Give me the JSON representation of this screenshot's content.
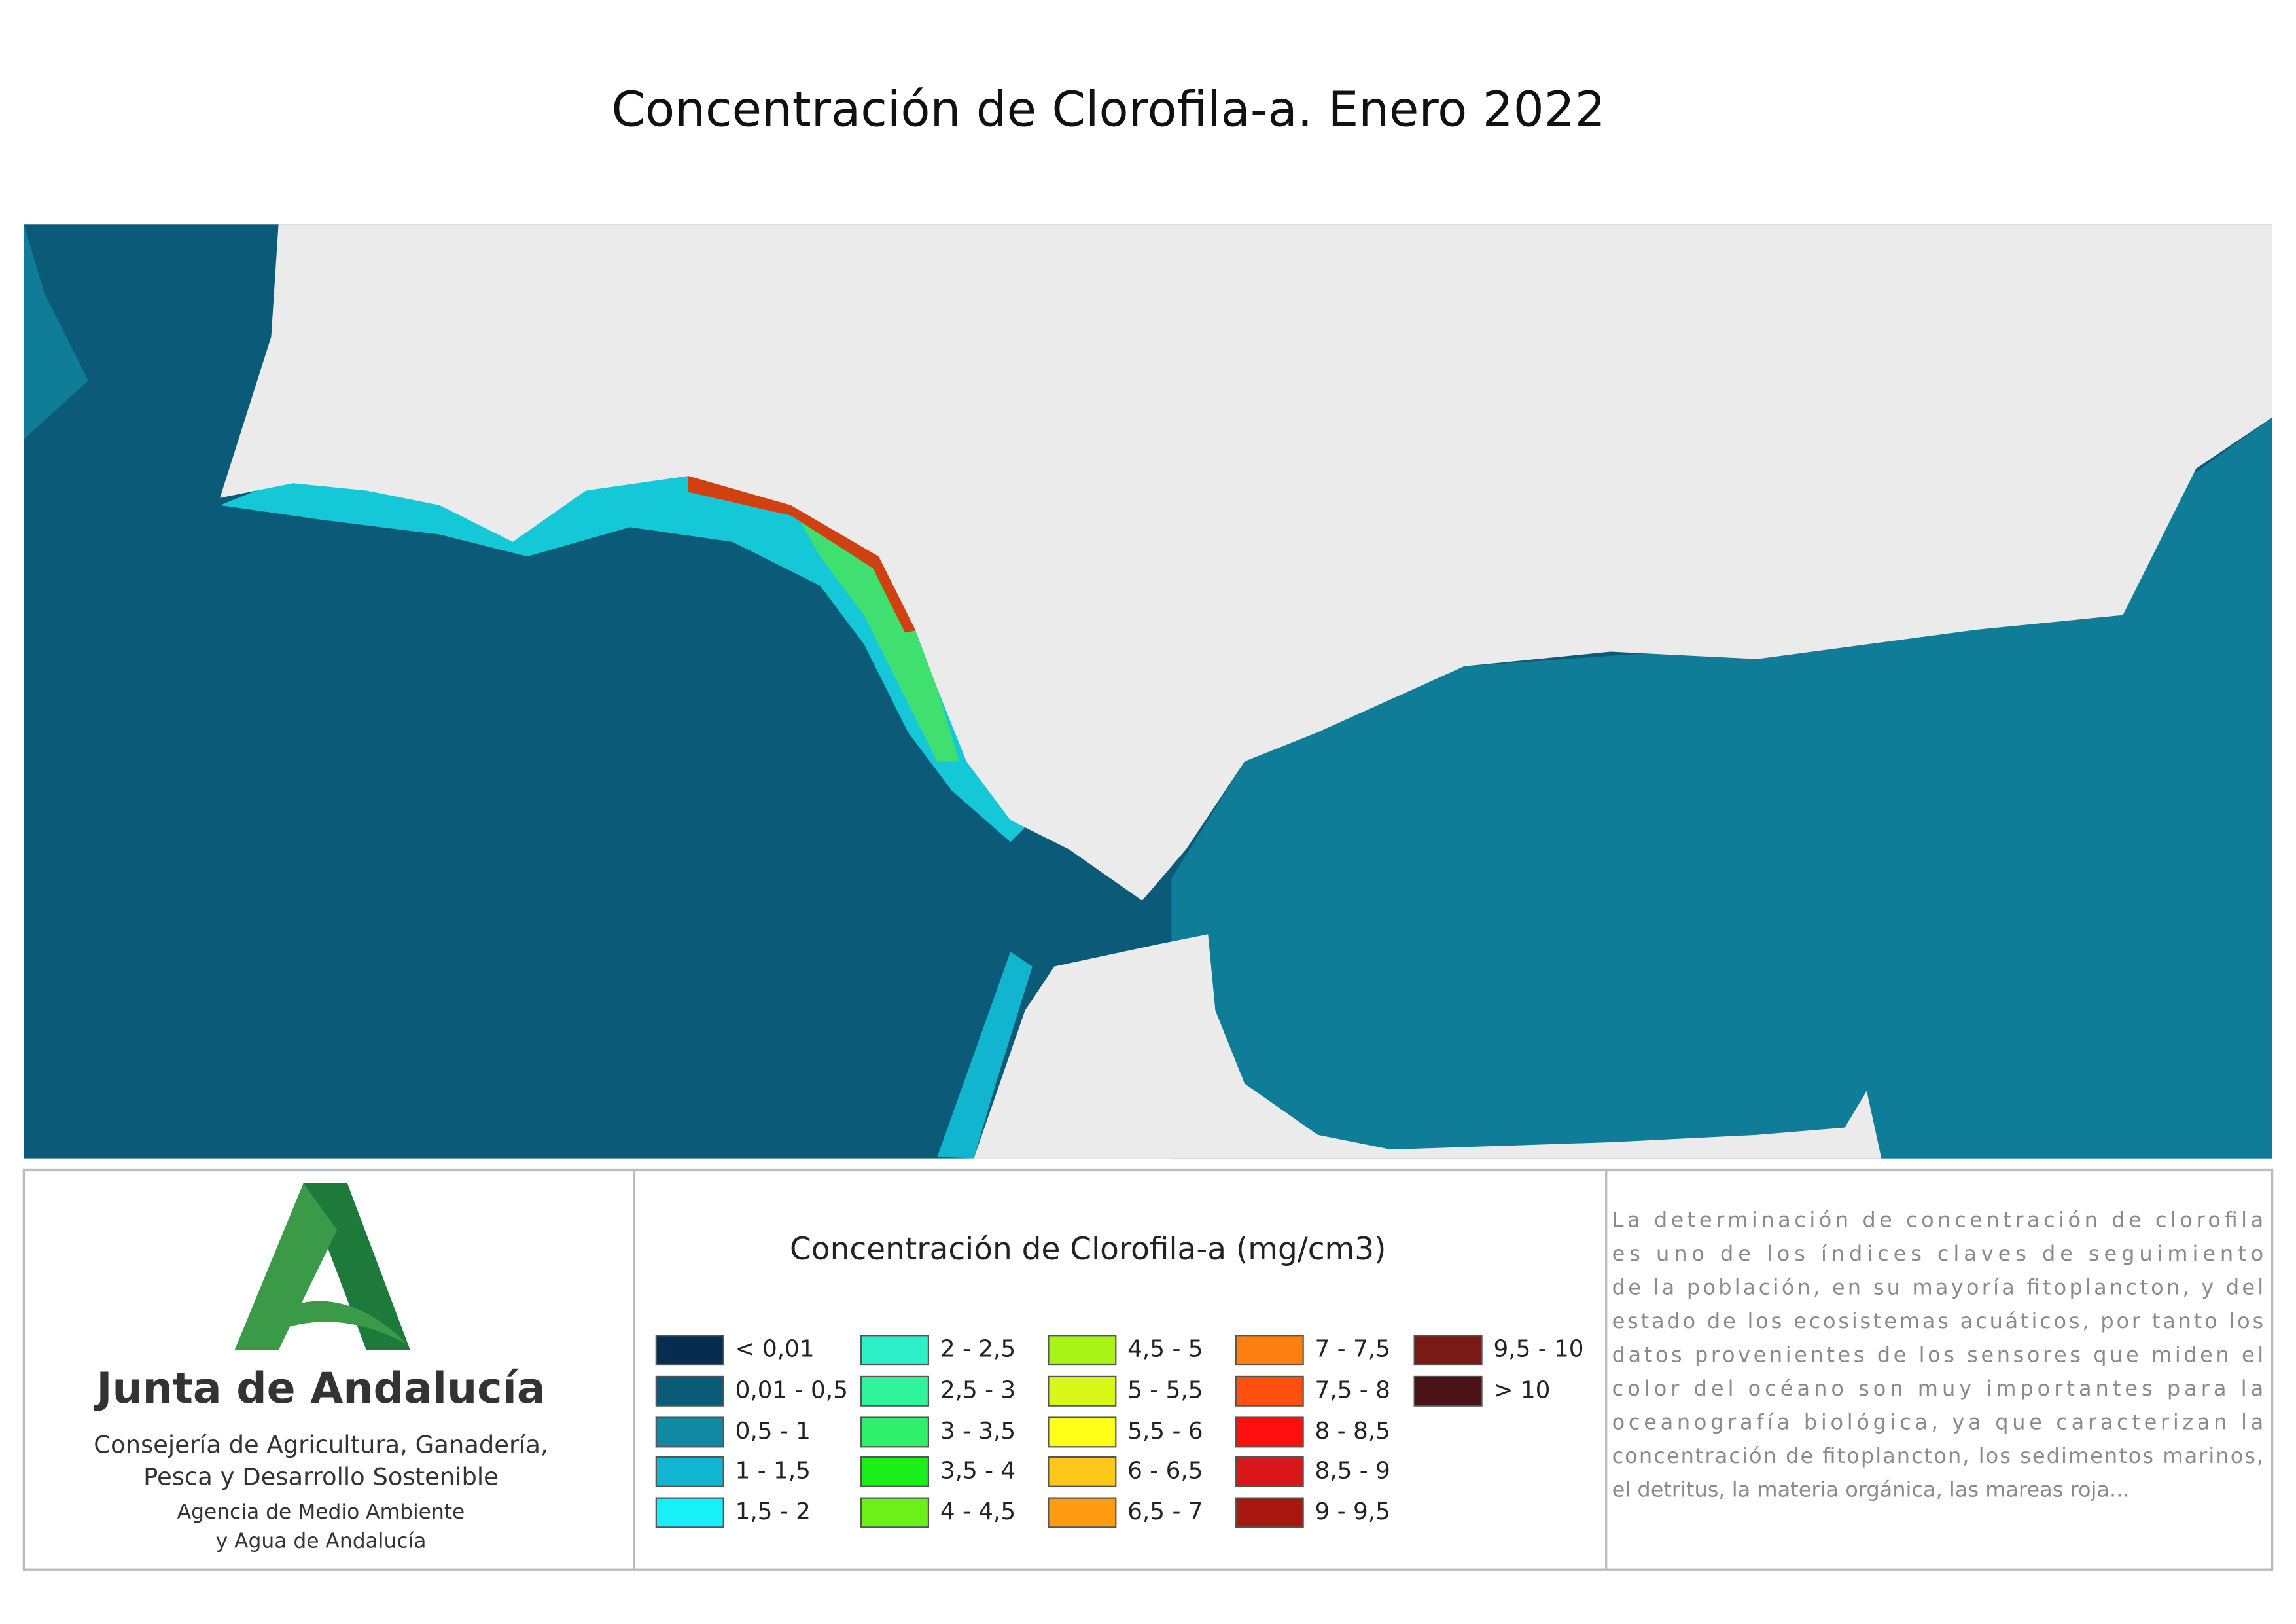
{
  "title": "Concentración de Clorofila-a. Enero 2022",
  "logo": {
    "name": "Junta de Andalucía",
    "department": [
      "Consejería de Agricultura, Ganadería,",
      "Pesca y Desarrollo Sostenible"
    ],
    "agency": [
      "Agencia de Medio Ambiente",
      "y Agua de Andalucía"
    ]
  },
  "legend": {
    "title": "Concentración de Clorofila-a (mg/cm3)",
    "items": [
      {
        "label": "< 0,01",
        "color": "#062d4f"
      },
      {
        "label": "0,01 - 0,5",
        "color": "#0b5a78"
      },
      {
        "label": "0,5 - 1",
        "color": "#1189a4"
      },
      {
        "label": "1 - 1,5",
        "color": "#12b5cf"
      },
      {
        "label": "1,5 - 2",
        "color": "#16f0f8"
      },
      {
        "label": "2 - 2,5",
        "color": "#2ef0c8"
      },
      {
        "label": "2,5 - 3",
        "color": "#2ef49a"
      },
      {
        "label": "3 - 3,5",
        "color": "#2ef06a"
      },
      {
        "label": "3,5 - 4",
        "color": "#18f018"
      },
      {
        "label": "4 - 4,5",
        "color": "#6cf018"
      },
      {
        "label": "4,5 - 5",
        "color": "#a8f418"
      },
      {
        "label": "5 - 5,5",
        "color": "#d8f818"
      },
      {
        "label": "5,5 - 6",
        "color": "#ffff18"
      },
      {
        "label": "6 - 6,5",
        "color": "#ffc818"
      },
      {
        "label": "6,5 - 7",
        "color": "#ff9c10"
      },
      {
        "label": "7 - 7,5",
        "color": "#ff8010"
      },
      {
        "label": "7,5 - 8",
        "color": "#ff5010"
      },
      {
        "label": "8 - 8,5",
        "color": "#ff1010"
      },
      {
        "label": "8,5 - 9",
        "color": "#d81818"
      },
      {
        "label": "9 - 9,5",
        "color": "#a81810"
      },
      {
        "label": "9,5 - 10",
        "color": "#7a1a16"
      },
      {
        "label": "> 10",
        "color": "#4a1416"
      }
    ]
  },
  "description": [
    "La determinación de concentración de clorofila",
    "es uno de los índices claves de seguimiento",
    "de la población, en su mayoría fitoplancton, y del",
    "estado de los ecosistemas acuáticos, por tanto los",
    "datos provenientes de los sensores que miden el",
    "color del océano son muy importantes para la",
    "oceanografía biológica, ya que caracterizan la",
    "concentración de fitoplancton, los sedimentos marinos,",
    "el detritus, la materia orgánica, las mareas roja..."
  ]
}
